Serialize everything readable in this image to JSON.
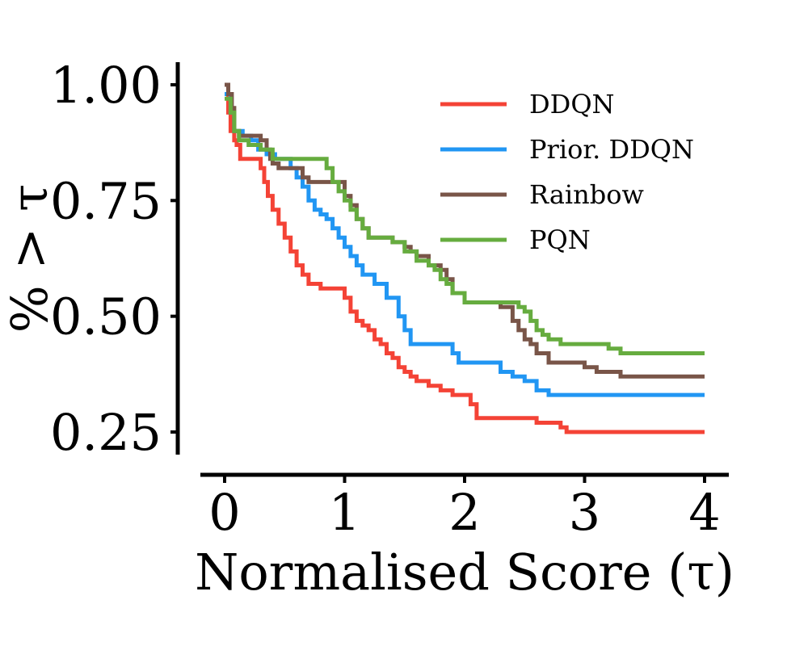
{
  "chart_data": {
    "type": "line",
    "title": "",
    "xlabel": "Normalised Score (τ)",
    "ylabel": "% > τ",
    "xlim": [
      -0.2,
      4.2
    ],
    "ylim": [
      0.2,
      1.05
    ],
    "xticks": [
      0,
      1,
      2,
      3,
      4
    ],
    "xtick_labels": [
      "0",
      "1",
      "2",
      "3",
      "4"
    ],
    "yticks": [
      0.25,
      0.5,
      0.75,
      1.0
    ],
    "ytick_labels": [
      "0.25",
      "0.50",
      "0.75",
      "1.00"
    ],
    "legend_position": "top-right",
    "series": [
      {
        "name": "DDQN",
        "color": "#f44336",
        "x": [
          0,
          0.03,
          0.05,
          0.08,
          0.1,
          0.13,
          0.18,
          0.25,
          0.3,
          0.33,
          0.36,
          0.4,
          0.45,
          0.5,
          0.55,
          0.6,
          0.65,
          0.7,
          0.75,
          0.8,
          0.85,
          0.95,
          1.0,
          1.05,
          1.1,
          1.15,
          1.2,
          1.25,
          1.3,
          1.35,
          1.4,
          1.45,
          1.5,
          1.55,
          1.6,
          1.7,
          1.8,
          1.9,
          2.0,
          2.05,
          2.1,
          2.2,
          2.4,
          2.6,
          2.8,
          2.85,
          2.9,
          3.2,
          4.0
        ],
        "y": [
          0.98,
          0.94,
          0.9,
          0.88,
          0.87,
          0.84,
          0.84,
          0.84,
          0.82,
          0.79,
          0.76,
          0.73,
          0.7,
          0.67,
          0.64,
          0.61,
          0.59,
          0.57,
          0.57,
          0.56,
          0.56,
          0.56,
          0.54,
          0.51,
          0.49,
          0.48,
          0.47,
          0.45,
          0.44,
          0.42,
          0.41,
          0.39,
          0.38,
          0.37,
          0.36,
          0.35,
          0.34,
          0.33,
          0.33,
          0.31,
          0.28,
          0.28,
          0.28,
          0.27,
          0.26,
          0.25,
          0.25,
          0.25,
          0.25
        ]
      },
      {
        "name": "Prior. DDQN",
        "color": "#2196f3",
        "x": [
          0,
          0.05,
          0.08,
          0.15,
          0.22,
          0.28,
          0.35,
          0.42,
          0.5,
          0.55,
          0.6,
          0.65,
          0.7,
          0.75,
          0.8,
          0.85,
          0.9,
          0.95,
          1.0,
          1.05,
          1.1,
          1.15,
          1.25,
          1.35,
          1.45,
          1.5,
          1.55,
          1.65,
          1.75,
          1.85,
          1.9,
          1.95,
          2.0,
          2.2,
          2.3,
          2.4,
          2.5,
          2.6,
          2.65,
          2.7,
          3.0,
          4.0
        ],
        "y": [
          0.98,
          0.94,
          0.9,
          0.89,
          0.88,
          0.86,
          0.85,
          0.84,
          0.84,
          0.82,
          0.8,
          0.78,
          0.75,
          0.73,
          0.72,
          0.71,
          0.69,
          0.67,
          0.65,
          0.63,
          0.61,
          0.59,
          0.57,
          0.54,
          0.5,
          0.47,
          0.44,
          0.44,
          0.44,
          0.44,
          0.42,
          0.4,
          0.4,
          0.4,
          0.38,
          0.37,
          0.36,
          0.34,
          0.34,
          0.33,
          0.33,
          0.33
        ]
      },
      {
        "name": "Rainbow",
        "color": "#795548",
        "x": [
          0,
          0.03,
          0.06,
          0.08,
          0.12,
          0.2,
          0.3,
          0.35,
          0.38,
          0.4,
          0.45,
          0.6,
          0.65,
          0.7,
          0.8,
          0.9,
          1.0,
          1.05,
          1.1,
          1.15,
          1.2,
          1.3,
          1.4,
          1.5,
          1.55,
          1.6,
          1.7,
          1.8,
          1.85,
          1.9,
          2.0,
          2.1,
          2.2,
          2.3,
          2.4,
          2.45,
          2.5,
          2.55,
          2.6,
          2.7,
          2.8,
          2.9,
          3.0,
          3.1,
          3.2,
          3.3,
          3.4,
          4.0
        ],
        "y": [
          1.0,
          0.98,
          0.95,
          0.9,
          0.89,
          0.89,
          0.88,
          0.86,
          0.84,
          0.83,
          0.82,
          0.82,
          0.8,
          0.79,
          0.79,
          0.79,
          0.76,
          0.74,
          0.71,
          0.69,
          0.67,
          0.67,
          0.66,
          0.65,
          0.64,
          0.63,
          0.61,
          0.6,
          0.58,
          0.55,
          0.53,
          0.53,
          0.53,
          0.52,
          0.49,
          0.47,
          0.45,
          0.44,
          0.42,
          0.4,
          0.4,
          0.4,
          0.39,
          0.38,
          0.38,
          0.37,
          0.37,
          0.37
        ]
      },
      {
        "name": "PQN",
        "color": "#66ac3f",
        "x": [
          0,
          0.05,
          0.08,
          0.12,
          0.2,
          0.3,
          0.4,
          0.5,
          0.6,
          0.7,
          0.75,
          0.8,
          0.85,
          0.9,
          0.95,
          1.0,
          1.05,
          1.1,
          1.15,
          1.2,
          1.3,
          1.4,
          1.5,
          1.6,
          1.7,
          1.75,
          1.8,
          1.85,
          1.9,
          2.0,
          2.2,
          2.4,
          2.45,
          2.5,
          2.55,
          2.6,
          2.65,
          2.7,
          2.8,
          3.0,
          3.2,
          3.3,
          3.5,
          4.0
        ],
        "y": [
          0.97,
          0.94,
          0.9,
          0.88,
          0.87,
          0.86,
          0.84,
          0.84,
          0.84,
          0.84,
          0.84,
          0.84,
          0.82,
          0.79,
          0.77,
          0.75,
          0.73,
          0.71,
          0.69,
          0.67,
          0.67,
          0.66,
          0.64,
          0.62,
          0.61,
          0.6,
          0.58,
          0.57,
          0.55,
          0.53,
          0.53,
          0.53,
          0.52,
          0.51,
          0.49,
          0.47,
          0.46,
          0.45,
          0.44,
          0.44,
          0.43,
          0.42,
          0.42,
          0.42
        ]
      }
    ]
  }
}
